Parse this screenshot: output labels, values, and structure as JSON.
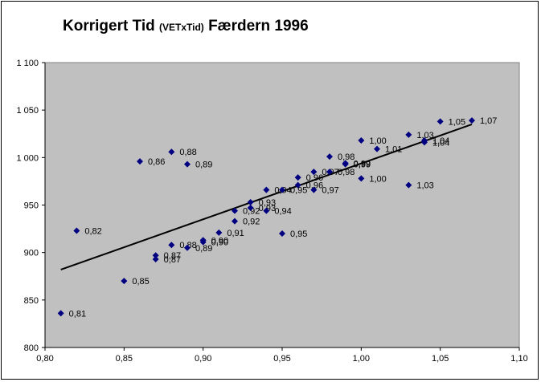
{
  "chart_data": {
    "type": "scatter",
    "title": {
      "main": "Korrigert Tid",
      "paren": "(VETxTid)",
      "suffix": "Færdern 1996"
    },
    "xlabel": "",
    "ylabel": "",
    "xlim": [
      0.8,
      1.1
    ],
    "ylim": [
      800,
      1100
    ],
    "x_ticks": [
      0.8,
      0.85,
      0.9,
      0.95,
      1.0,
      1.05,
      1.1
    ],
    "x_tick_labels": [
      "0,80",
      "0,85",
      "0,90",
      "0,95",
      "1,00",
      "1,05",
      "1,10"
    ],
    "y_ticks": [
      800,
      850,
      900,
      950,
      1000,
      1050,
      1100
    ],
    "y_tick_labels": [
      "800",
      "850",
      "900",
      "950",
      "1 000",
      "1 050",
      "1 100"
    ],
    "grid": false,
    "legend": "none",
    "plot_bg": "#c0c0c0",
    "marker_color": "#000080",
    "trendline": {
      "x": [
        0.81,
        1.07
      ],
      "y": [
        882,
        1035
      ],
      "color": "#000000"
    },
    "points": [
      {
        "x": 0.81,
        "y": 836,
        "label": "0,81"
      },
      {
        "x": 0.82,
        "y": 923,
        "label": "0,82"
      },
      {
        "x": 0.85,
        "y": 870,
        "label": "0,85"
      },
      {
        "x": 0.86,
        "y": 996,
        "label": "0,86"
      },
      {
        "x": 0.87,
        "y": 897,
        "label": "0,87"
      },
      {
        "x": 0.87,
        "y": 893,
        "label": "0,87"
      },
      {
        "x": 0.88,
        "y": 1006,
        "label": "0,88"
      },
      {
        "x": 0.88,
        "y": 908,
        "label": "0,88"
      },
      {
        "x": 0.89,
        "y": 993,
        "label": "0,89"
      },
      {
        "x": 0.89,
        "y": 905,
        "label": "0,89"
      },
      {
        "x": 0.9,
        "y": 913,
        "label": "0,90"
      },
      {
        "x": 0.9,
        "y": 911,
        "label": "0,90"
      },
      {
        "x": 0.91,
        "y": 921,
        "label": "0,91"
      },
      {
        "x": 0.92,
        "y": 944,
        "label": "0,92"
      },
      {
        "x": 0.92,
        "y": 933,
        "label": "0,92"
      },
      {
        "x": 0.93,
        "y": 953,
        "label": "0,93"
      },
      {
        "x": 0.93,
        "y": 947,
        "label": "0,93"
      },
      {
        "x": 0.94,
        "y": 966,
        "label": "0,94"
      },
      {
        "x": 0.94,
        "y": 944,
        "label": "0,94"
      },
      {
        "x": 0.95,
        "y": 966,
        "label": "0,95"
      },
      {
        "x": 0.95,
        "y": 920,
        "label": "0,95"
      },
      {
        "x": 0.96,
        "y": 979,
        "label": "0,96"
      },
      {
        "x": 0.96,
        "y": 971,
        "label": "0,96"
      },
      {
        "x": 0.97,
        "y": 985,
        "label": "0,97"
      },
      {
        "x": 0.97,
        "y": 966,
        "label": "0,97"
      },
      {
        "x": 0.98,
        "y": 1001,
        "label": "0,98"
      },
      {
        "x": 0.98,
        "y": 985,
        "label": "0,98"
      },
      {
        "x": 0.99,
        "y": 994,
        "label": "0,99"
      },
      {
        "x": 0.99,
        "y": 993,
        "label": "0,99"
      },
      {
        "x": 1.0,
        "y": 1018,
        "label": "1,00"
      },
      {
        "x": 1.0,
        "y": 978,
        "label": "1,00"
      },
      {
        "x": 1.01,
        "y": 1009,
        "label": "1,01"
      },
      {
        "x": 1.03,
        "y": 1024,
        "label": "1,03"
      },
      {
        "x": 1.03,
        "y": 971,
        "label": "1,03"
      },
      {
        "x": 1.04,
        "y": 1018,
        "label": "1,04"
      },
      {
        "x": 1.04,
        "y": 1016,
        "label": "1,04"
      },
      {
        "x": 1.05,
        "y": 1038,
        "label": "1,05"
      },
      {
        "x": 1.07,
        "y": 1039,
        "label": "1,07"
      }
    ]
  }
}
